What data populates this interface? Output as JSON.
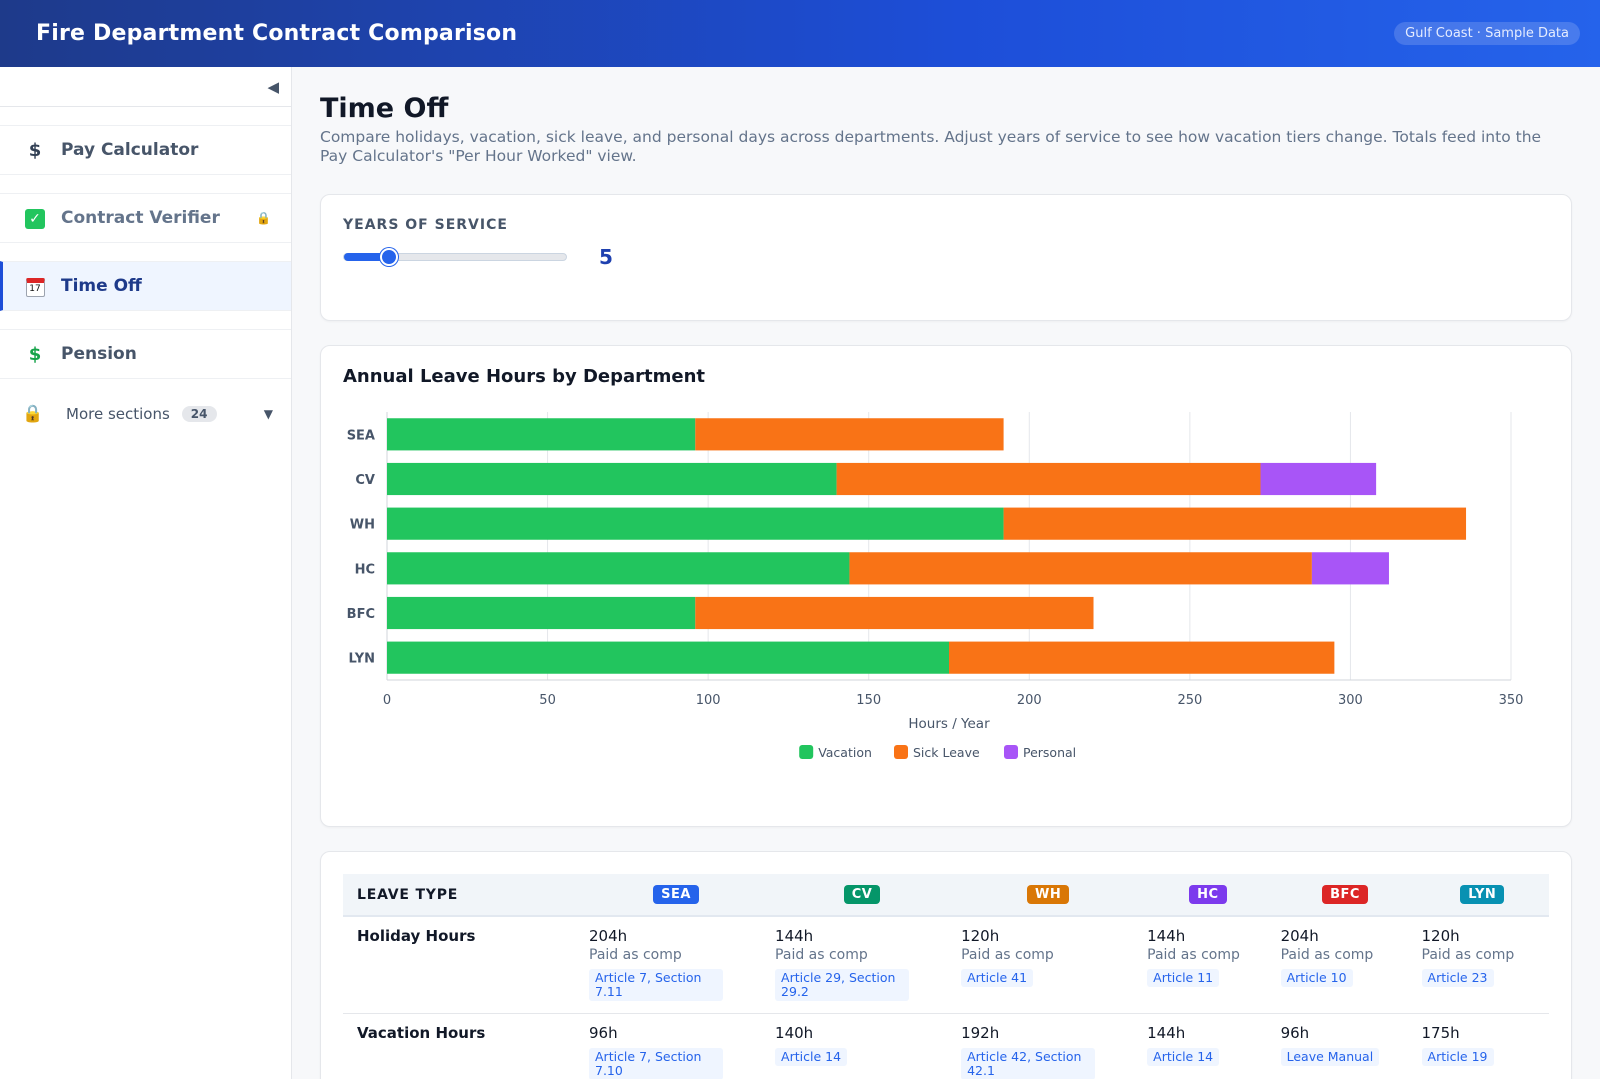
{
  "header": {
    "title": "Fire Department Contract Comparison",
    "badge": "Gulf Coast · Sample Data"
  },
  "sidebar": {
    "collapse_glyph": "◀",
    "items": [
      {
        "label": "Pay Calculator",
        "icon": "dollar-icon"
      },
      {
        "label": "Contract Verifier",
        "icon": "check-icon",
        "locked": true
      },
      {
        "label": "Time Off",
        "icon": "calendar-icon",
        "active": true
      },
      {
        "label": "Pension",
        "icon": "dollar-icon"
      }
    ],
    "more": {
      "label": "More sections",
      "count": "24"
    }
  },
  "page": {
    "title": "Time Off",
    "description": "Compare holidays, vacation, sick leave, and personal days across departments. Adjust years of service to see how vacation tiers change. Totals feed into the Pay Calculator's \"Per Hour Worked\" view."
  },
  "service": {
    "label": "YEARS OF SERVICE",
    "value": "5",
    "fraction": 0.2
  },
  "chart_data": {
    "type": "bar",
    "orientation": "horizontal",
    "stacked": true,
    "title": "Annual Leave Hours by Department",
    "xlabel": "Hours / Year",
    "xlim": [
      0,
      350
    ],
    "xticks": [
      0,
      50,
      100,
      150,
      200,
      250,
      300,
      350
    ],
    "categories": [
      "SEA",
      "CV",
      "WH",
      "HC",
      "BFC",
      "LYN"
    ],
    "series": [
      {
        "name": "Vacation",
        "color": "#22c55e",
        "values": [
          96,
          140,
          192,
          144,
          96,
          175
        ]
      },
      {
        "name": "Sick Leave",
        "color": "#f97316",
        "values": [
          96,
          132,
          144,
          144,
          124,
          120
        ]
      },
      {
        "name": "Personal",
        "color": "#a855f7",
        "values": [
          0,
          36,
          0,
          24,
          0,
          0
        ]
      }
    ],
    "grid": true,
    "legend": "bottom-center"
  },
  "table": {
    "header_label": "LEAVE TYPE",
    "departments": [
      {
        "code": "SEA",
        "color": "#2563eb"
      },
      {
        "code": "CV",
        "color": "#059669"
      },
      {
        "code": "WH",
        "color": "#d97706"
      },
      {
        "code": "HC",
        "color": "#7c3aed"
      },
      {
        "code": "BFC",
        "color": "#dc2626"
      },
      {
        "code": "LYN",
        "color": "#0891b2"
      }
    ],
    "rows": [
      {
        "label": "Holiday Hours",
        "cells": [
          {
            "value": "204h",
            "sub": "Paid as comp",
            "cite": "Article 7, Section 7.11"
          },
          {
            "value": "144h",
            "sub": "Paid as comp",
            "cite": "Article 29, Section 29.2"
          },
          {
            "value": "120h",
            "sub": "Paid as comp",
            "cite": "Article 41"
          },
          {
            "value": "144h",
            "sub": "Paid as comp",
            "cite": "Article 11"
          },
          {
            "value": "204h",
            "sub": "Paid as comp",
            "cite": "Article 10"
          },
          {
            "value": "120h",
            "sub": "Paid as comp",
            "cite": "Article 23"
          }
        ]
      },
      {
        "label": "Vacation Hours",
        "cells": [
          {
            "value": "96h",
            "sub": "",
            "cite": "Article 7, Section 7.10"
          },
          {
            "value": "140h",
            "sub": "",
            "cite": "Article 14"
          },
          {
            "value": "192h",
            "sub": "",
            "cite": "Article 42, Section 42.1"
          },
          {
            "value": "144h",
            "sub": "",
            "cite": "Article 14"
          },
          {
            "value": "96h",
            "sub": "",
            "cite": "Leave Manual"
          },
          {
            "value": "175h",
            "sub": "",
            "cite": "Article 19"
          }
        ]
      }
    ]
  }
}
